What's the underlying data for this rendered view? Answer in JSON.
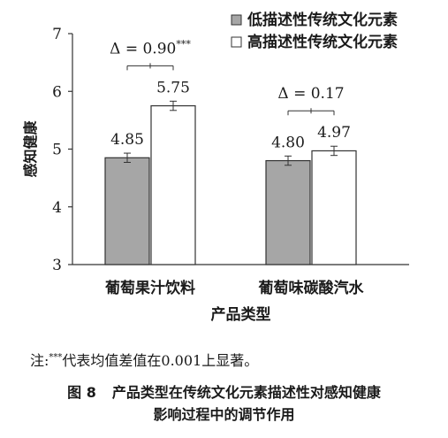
{
  "chart_data": {
    "type": "bar",
    "categories": [
      "葡萄果汁饮料",
      "葡萄味碳酸汽水"
    ],
    "series": [
      {
        "name": "低描述性传统文化元素",
        "values": [
          4.85,
          4.8
        ],
        "errors": [
          0.08,
          0.08
        ],
        "color": "#a6a6a6"
      },
      {
        "name": "高描述性传统文化元素",
        "values": [
          5.75,
          4.97
        ],
        "errors": [
          0.08,
          0.08
        ],
        "color": "#ffffff"
      }
    ],
    "data_labels": [
      [
        "4.85",
        "5.75"
      ],
      [
        "4.80",
        "4.97"
      ]
    ],
    "xlabel": "产品类型",
    "ylabel": "感知健康",
    "ylim": [
      3,
      7
    ],
    "yticks": [
      "3",
      "4",
      "5",
      "6",
      "7"
    ],
    "annotations": [
      {
        "category_index": 0,
        "text": "Δ = 0.90",
        "sup": "***"
      },
      {
        "category_index": 1,
        "text": "Δ = 0.17",
        "sup": ""
      }
    ],
    "legend_position": "top-right",
    "grid": false
  },
  "note": {
    "prefix": "注:",
    "sup": "***",
    "text": "代表均值差值在0.001上显著。"
  },
  "caption": {
    "number": "图 8",
    "line1": "产品类型在传统文化元素描述性对感知健康",
    "line2": "影响过程中的调节作用"
  }
}
